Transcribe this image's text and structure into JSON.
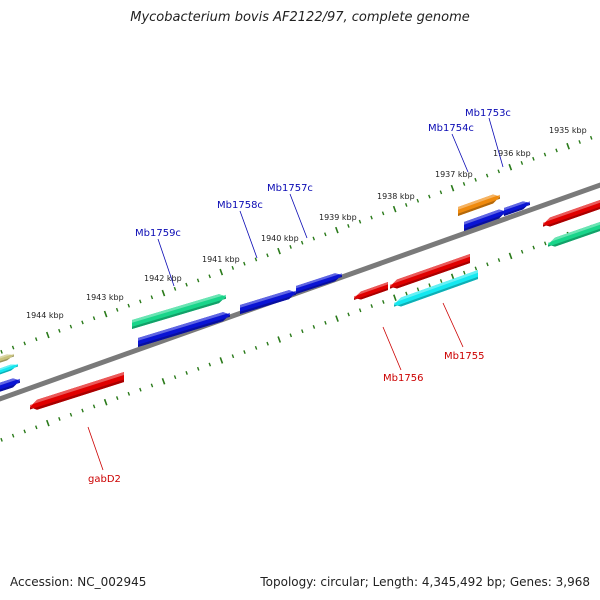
{
  "title": "Mycobacterium bovis AF2122/97, complete genome",
  "footer": {
    "accession": "Accession: NC_002945",
    "summary": "Topology: circular; Length: 4,345,492 bp; Genes: 3,968"
  },
  "scale": {
    "labels": [
      "1935 kbp",
      "1936 kbp",
      "1937 kbp",
      "1938 kbp",
      "1939 kbp",
      "1940 kbp",
      "1941 kbp",
      "1942 kbp",
      "1943 kbp",
      "1944 kbp"
    ],
    "tick_color": "#2a7a1a"
  },
  "colors": {
    "blue": "#0a14d4",
    "red": "#e00000",
    "green": "#19d58a",
    "cyan": "#14e8f0",
    "orange": "#ef8a0d",
    "khaki": "#c8c27c",
    "backbone": "#7a7a7a",
    "label_blue": "#0a0ab4",
    "label_red": "#cc0000"
  },
  "gene_labels": [
    "Mb1753c",
    "Mb1754c",
    "Mb1757c",
    "Mb1758c",
    "Mb1759c",
    "Mb1755",
    "Mb1756",
    "gabD2"
  ],
  "features": [
    {
      "type": "gene",
      "color": "green"
    },
    {
      "type": "gene",
      "color": "blue"
    },
    {
      "type": "gene",
      "color": "blue"
    },
    {
      "type": "gene",
      "color": "blue"
    },
    {
      "type": "gene",
      "color": "blue"
    },
    {
      "type": "gene",
      "color": "orange"
    },
    {
      "type": "gene",
      "color": "blue"
    },
    {
      "type": "gene",
      "color": "red"
    },
    {
      "type": "gene",
      "color": "green"
    },
    {
      "type": "gene",
      "color": "red"
    },
    {
      "type": "gene",
      "color": "cyan"
    },
    {
      "type": "gene",
      "color": "red"
    },
    {
      "type": "gene",
      "color": "red"
    },
    {
      "type": "gene",
      "color": "khaki"
    },
    {
      "type": "gene",
      "color": "cyan"
    },
    {
      "type": "gene",
      "color": "blue"
    }
  ]
}
